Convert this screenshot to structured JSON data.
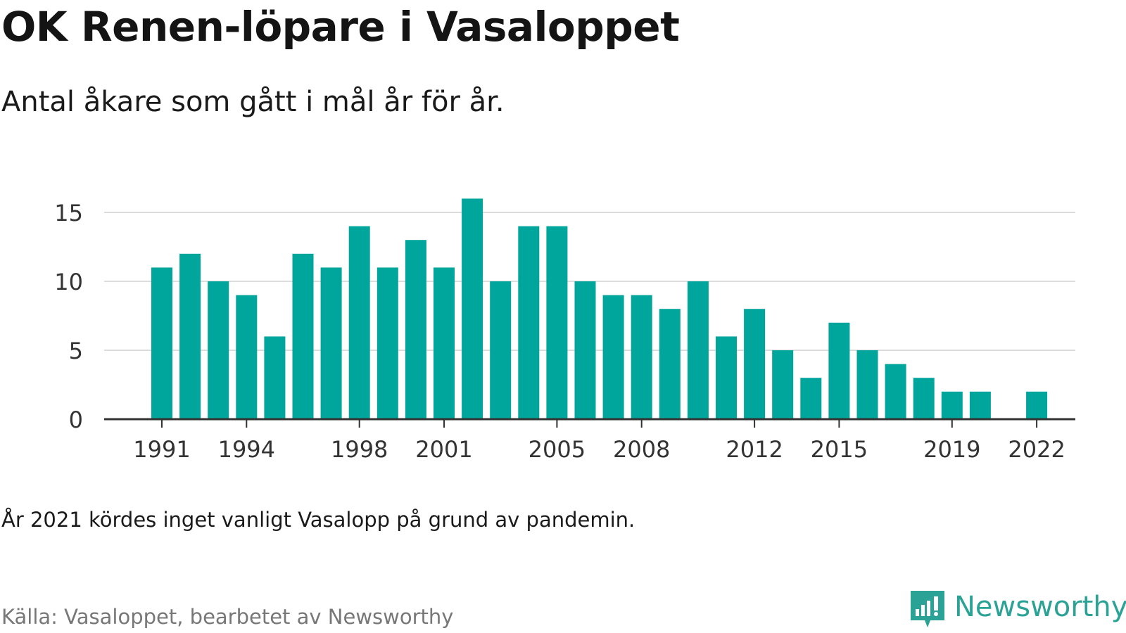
{
  "header": {
    "title": "OK Renen-löpare i Vasaloppet",
    "subtitle": "Antal åkare som gått i mål år för år."
  },
  "footer": {
    "note": "År 2021 kördes inget vanligt Vasalopp på grund av pandemin.",
    "source": "Källa: Vasaloppet, bearbetet av Newsworthy",
    "brand": "Newsworthy"
  },
  "colors": {
    "bar": "#00a59b",
    "grid": "#dcdcdc",
    "axis": "#333333",
    "brand": "#2aa295"
  },
  "chart_data": {
    "type": "bar",
    "title": "OK Renen-löpare i Vasaloppet",
    "subtitle": "Antal åkare som gått i mål år för år.",
    "x": [
      1991,
      1992,
      1993,
      1994,
      1995,
      1996,
      1997,
      1998,
      1999,
      2000,
      2001,
      2002,
      2003,
      2004,
      2005,
      2006,
      2007,
      2008,
      2009,
      2010,
      2011,
      2012,
      2013,
      2014,
      2015,
      2016,
      2017,
      2018,
      2019,
      2020,
      2021,
      2022
    ],
    "values": [
      11,
      12,
      10,
      9,
      6,
      12,
      11,
      14,
      11,
      13,
      11,
      16,
      10,
      14,
      14,
      10,
      9,
      9,
      8,
      10,
      6,
      8,
      5,
      3,
      7,
      5,
      4,
      3,
      2,
      2,
      null,
      2
    ],
    "x_tick_labels": [
      "1991",
      "1994",
      "1998",
      "2001",
      "2005",
      "2008",
      "2012",
      "2015",
      "2019",
      "2022"
    ],
    "y_ticks": [
      0,
      5,
      10,
      15
    ],
    "ylim": [
      0,
      16
    ],
    "xlabel": "",
    "ylabel": "",
    "grid": true,
    "legend": "none"
  }
}
